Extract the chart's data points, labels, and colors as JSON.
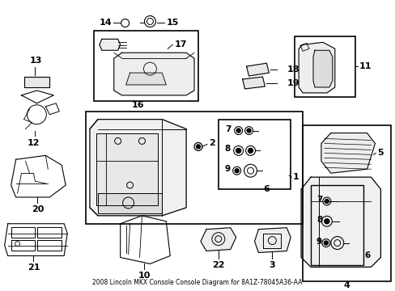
{
  "title": "2008 Lincoln MKX Console Console Diagram for 8A1Z-78045A36-AA",
  "bg_color": "#ffffff",
  "fg_color": "#000000",
  "fig_width": 4.89,
  "fig_height": 3.6,
  "dpi": 100
}
